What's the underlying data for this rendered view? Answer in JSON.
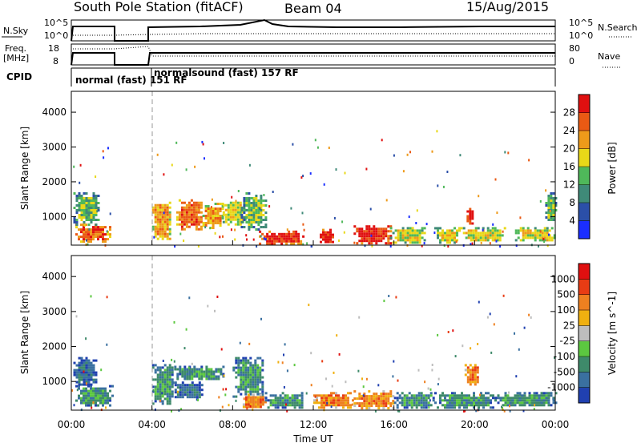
{
  "header": {
    "station": "South Pole Station (fitACF)",
    "beam": "Beam 04",
    "date": "15/Aug/2015"
  },
  "top_panels": {
    "nsky_label": "N.Sky",
    "nsky_ticks": [
      "10^5",
      "10^0"
    ],
    "nsearch_label": "N.Search",
    "nsearch_ticks": [
      "10^5",
      "10^0"
    ],
    "freq_label": "Freq.",
    "freq_unit": "[MHz]",
    "freq_ticks": [
      "18",
      "8"
    ],
    "nave_label": "Nave",
    "nave_ticks": [
      "80",
      "0"
    ],
    "cpid_label": "CPID",
    "cpid_segments": [
      {
        "label": "normal (fast) 151 RF",
        "start_hr": 0,
        "end_hr": 4
      },
      {
        "label": "normalsound (fast) 157 RF",
        "start_hr": 4,
        "end_hr": 24
      }
    ]
  },
  "chart_data": [
    {
      "type": "heatmap",
      "title": "",
      "xlabel": "",
      "ylabel": "Slant Range [km]",
      "xlim": [
        0,
        24
      ],
      "ylim": [
        180,
        4600
      ],
      "yticks": [
        "1000",
        "2000",
        "3000",
        "4000"
      ],
      "colorbar": {
        "label": "Power [dB]",
        "ticks": [
          "4",
          "8",
          "12",
          "16",
          "20",
          "24",
          "28"
        ],
        "colors": [
          "#1a2eff",
          "#2b4fa8",
          "#3f8a78",
          "#4fb85a",
          "#e8d818",
          "#ee9a1a",
          "#ea5a14",
          "#e01010"
        ]
      },
      "data_gap_hr": [
        2.0,
        3.95
      ],
      "blocks": [
        {
          "t0": 0.2,
          "t1": 1.9,
          "r0": 300,
          "r1": 800,
          "level": 6
        },
        {
          "t0": 0.1,
          "t1": 1.4,
          "r0": 800,
          "r1": 1700,
          "level": 3
        },
        {
          "t0": 4.0,
          "t1": 4.9,
          "r0": 350,
          "r1": 1500,
          "level": 5
        },
        {
          "t0": 5.2,
          "t1": 6.5,
          "r0": 650,
          "r1": 1500,
          "level": 6
        },
        {
          "t0": 6.5,
          "t1": 7.5,
          "r0": 700,
          "r1": 1400,
          "level": 5
        },
        {
          "t0": 7.5,
          "t1": 8.6,
          "r0": 800,
          "r1": 1500,
          "level": 4
        },
        {
          "t0": 9.3,
          "t1": 11.5,
          "r0": 250,
          "r1": 600,
          "level": 7
        },
        {
          "t0": 8.4,
          "t1": 9.6,
          "r0": 650,
          "r1": 1700,
          "level": 3
        },
        {
          "t0": 12.2,
          "t1": 13.0,
          "r0": 250,
          "r1": 650,
          "level": 7
        },
        {
          "t0": 14.0,
          "t1": 15.8,
          "r0": 250,
          "r1": 750,
          "level": 7
        },
        {
          "t0": 15.8,
          "t1": 17.5,
          "r0": 250,
          "r1": 700,
          "level": 4
        },
        {
          "t0": 18.0,
          "t1": 19.3,
          "r0": 250,
          "r1": 700,
          "level": 4
        },
        {
          "t0": 19.6,
          "t1": 19.9,
          "r0": 800,
          "r1": 1250,
          "level": 7
        },
        {
          "t0": 19.3,
          "t1": 21.5,
          "r0": 300,
          "r1": 700,
          "level": 4
        },
        {
          "t0": 22.0,
          "t1": 24.0,
          "r0": 300,
          "r1": 700,
          "level": 4
        },
        {
          "t0": 23.5,
          "t1": 24.0,
          "r0": 900,
          "r1": 1700,
          "level": 3
        }
      ]
    },
    {
      "type": "heatmap",
      "title": "",
      "xlabel": "Time UT",
      "ylabel": "Slant Range [km]",
      "xlim": [
        0,
        24
      ],
      "ylim": [
        180,
        4600
      ],
      "xticks": [
        "00:00",
        "04:00",
        "08:00",
        "12:00",
        "16:00",
        "20:00",
        "00:00"
      ],
      "yticks": [
        "1000",
        "2000",
        "3000",
        "4000"
      ],
      "colorbar": {
        "label": "Velocity [m s^-1]",
        "ticks": [
          "1000",
          "500",
          "100",
          "25",
          "-25",
          "-100",
          "-500",
          "-1000"
        ],
        "colors": [
          "#2040b0",
          "#3a70a0",
          "#3e8a6a",
          "#5cc840",
          "#bdbdbd",
          "#f0b010",
          "#ee8020",
          "#e83c14",
          "#e01010"
        ]
      },
      "data_gap_hr": [
        2.0,
        3.95
      ],
      "blocks": [
        {
          "t0": 0.2,
          "t1": 2.0,
          "r0": 300,
          "r1": 900,
          "level": 2
        },
        {
          "t0": 0.1,
          "t1": 1.2,
          "r0": 900,
          "r1": 1700,
          "level": 1
        },
        {
          "t0": 4.0,
          "t1": 5.0,
          "r0": 400,
          "r1": 1500,
          "level": 2
        },
        {
          "t0": 5.1,
          "t1": 7.5,
          "r0": 1050,
          "r1": 1450,
          "level": 2
        },
        {
          "t0": 5.0,
          "t1": 6.5,
          "r0": 500,
          "r1": 1000,
          "level": 1
        },
        {
          "t0": 8.0,
          "t1": 9.5,
          "r0": 600,
          "r1": 1700,
          "level": 2
        },
        {
          "t0": 8.5,
          "t1": 9.6,
          "r0": 250,
          "r1": 650,
          "level": 6
        },
        {
          "t0": 9.6,
          "t1": 11.5,
          "r0": 250,
          "r1": 700,
          "level": 2
        },
        {
          "t0": 12.0,
          "t1": 14.0,
          "r0": 250,
          "r1": 700,
          "level": 6
        },
        {
          "t0": 14.0,
          "t1": 16.0,
          "r0": 250,
          "r1": 750,
          "level": 6
        },
        {
          "t0": 16.0,
          "t1": 18.0,
          "r0": 250,
          "r1": 700,
          "level": 2
        },
        {
          "t0": 18.0,
          "t1": 21.0,
          "r0": 250,
          "r1": 700,
          "level": 2
        },
        {
          "t0": 19.5,
          "t1": 20.2,
          "r0": 900,
          "r1": 1500,
          "level": 6
        },
        {
          "t0": 21.0,
          "t1": 24.0,
          "r0": 300,
          "r1": 700,
          "level": 2
        }
      ]
    }
  ]
}
